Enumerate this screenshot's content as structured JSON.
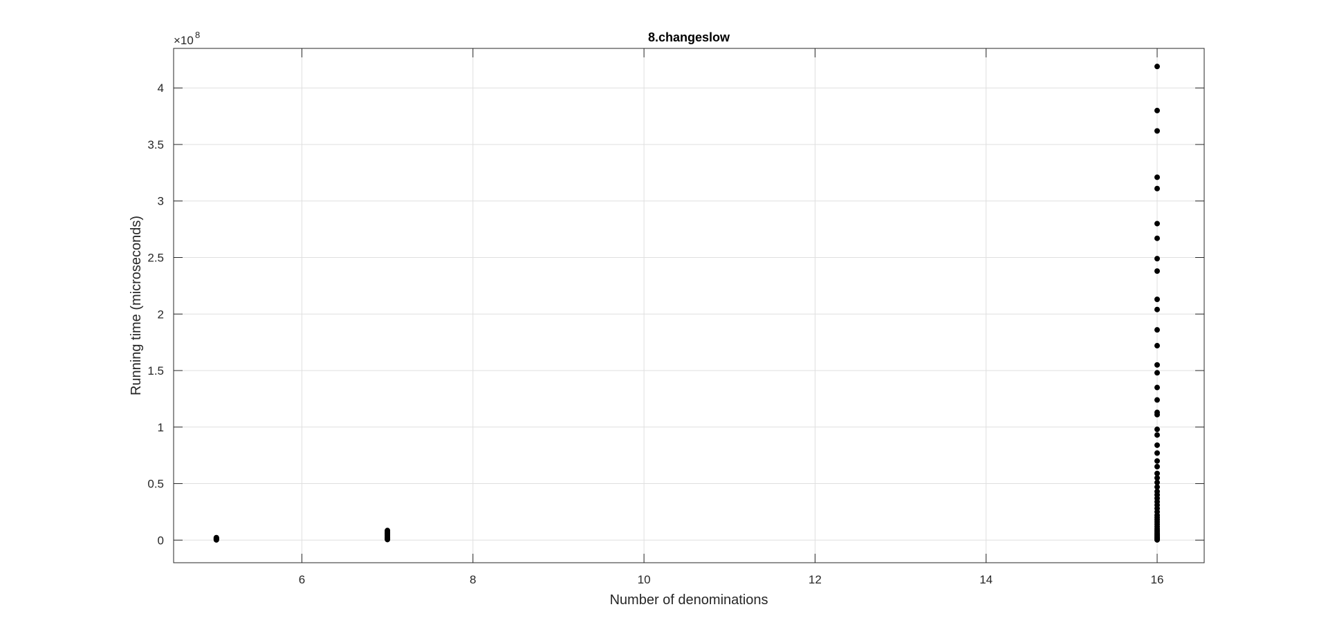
{
  "chart_data": {
    "type": "scatter",
    "title": "8.changeslow",
    "xlabel": "Number of denominations",
    "ylabel": "Running time (microseconds)",
    "y_exponent_base": "×10",
    "y_exponent": "8",
    "y_scale": 100000000,
    "xlim": [
      4.5,
      16.55
    ],
    "ylim": [
      -0.2,
      4.35
    ],
    "xticks": [
      6,
      8,
      10,
      12,
      14,
      16
    ],
    "xtick_labels": [
      "6",
      "8",
      "10",
      "12",
      "14",
      "16"
    ],
    "yticks": [
      0,
      0.5,
      1,
      1.5,
      2,
      2.5,
      3,
      3.5,
      4
    ],
    "ytick_labels": [
      "0",
      "0.5",
      "1",
      "1.5",
      "2",
      "2.5",
      "3",
      "3.5",
      "4"
    ],
    "grid": true,
    "marker_color": "#000000",
    "grid_color": "#dfdfdf",
    "axis_color": "#262626",
    "series": [
      {
        "x": [
          5,
          5,
          5,
          5,
          5,
          5,
          7,
          7,
          7,
          7,
          7,
          7,
          7,
          7,
          7,
          16,
          16,
          16,
          16,
          16,
          16,
          16,
          16,
          16,
          16,
          16,
          16,
          16,
          16,
          16,
          16,
          16,
          16,
          16,
          16,
          16,
          16,
          16,
          16,
          16,
          16,
          16,
          16,
          16,
          16,
          16,
          16,
          16,
          16,
          16,
          16,
          16,
          16,
          16,
          16,
          16,
          16,
          16,
          16,
          16,
          16,
          16,
          16,
          16,
          16,
          16,
          16,
          16
        ],
        "y": [
          0.002,
          0.006,
          0.01,
          0.014,
          0.018,
          0.022,
          0.005,
          0.015,
          0.025,
          0.035,
          0.045,
          0.055,
          0.065,
          0.075,
          0.085,
          4.19,
          3.8,
          3.62,
          3.21,
          3.11,
          2.8,
          2.67,
          2.49,
          2.38,
          2.13,
          2.04,
          1.86,
          1.72,
          1.55,
          1.48,
          1.35,
          1.24,
          1.13,
          1.11,
          0.98,
          0.93,
          0.84,
          0.77,
          0.7,
          0.65,
          0.59,
          0.55,
          0.51,
          0.47,
          0.43,
          0.4,
          0.37,
          0.34,
          0.31,
          0.28,
          0.25,
          0.22,
          0.2,
          0.18,
          0.16,
          0.14,
          0.12,
          0.1,
          0.085,
          0.07,
          0.055,
          0.045,
          0.035,
          0.025,
          0.018,
          0.012,
          0.006,
          0.002
        ]
      }
    ]
  }
}
